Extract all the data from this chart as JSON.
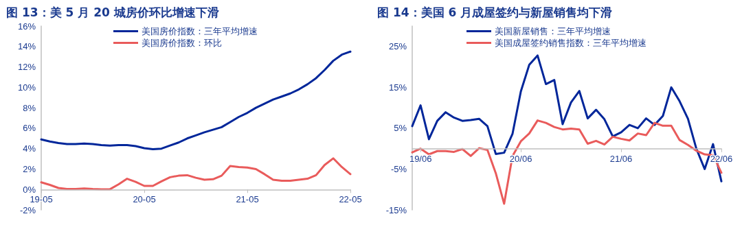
{
  "chart_data": [
    {
      "type": "line",
      "title": "图 13：美 5 月 20 城房价环比增速下滑",
      "categories": [
        "19-05",
        null,
        null,
        null,
        null,
        null,
        null,
        null,
        null,
        null,
        null,
        null,
        "20-05",
        null,
        null,
        null,
        null,
        null,
        null,
        null,
        null,
        null,
        null,
        null,
        "21-05",
        null,
        null,
        null,
        null,
        null,
        null,
        null,
        null,
        null,
        null,
        null,
        "22-05"
      ],
      "series": [
        {
          "name": "美国房价指数：三年平均增速",
          "color": "#00269a",
          "values": [
            4.9,
            4.7,
            4.55,
            4.45,
            4.45,
            4.5,
            4.45,
            4.35,
            4.3,
            4.35,
            4.35,
            4.25,
            4.05,
            3.95,
            4.0,
            4.3,
            4.6,
            5.0,
            5.3,
            5.6,
            5.85,
            6.1,
            6.6,
            7.1,
            7.5,
            8.0,
            8.4,
            8.8,
            9.1,
            9.4,
            9.8,
            10.3,
            10.9,
            11.7,
            12.6,
            13.2,
            13.5
          ]
        },
        {
          "name": "美国房价指数：环比",
          "color": "#e95b5b",
          "values": [
            0.7,
            0.45,
            0.15,
            0.05,
            0.05,
            0.1,
            0.05,
            0.02,
            0.02,
            0.5,
            1.05,
            0.75,
            0.35,
            0.35,
            0.8,
            1.2,
            1.35,
            1.4,
            1.15,
            0.95,
            1.0,
            1.35,
            2.3,
            2.2,
            2.15,
            2.0,
            1.5,
            0.95,
            0.85,
            0.85,
            0.95,
            1.05,
            1.4,
            2.4,
            3.05,
            2.2,
            1.5
          ]
        }
      ],
      "ylim": [
        -2,
        16
      ],
      "yticks": [
        {
          "value": -2,
          "label": "-2%"
        },
        {
          "value": 0,
          "label": "0%"
        },
        {
          "value": 2,
          "label": "2%"
        },
        {
          "value": 4,
          "label": "4%"
        },
        {
          "value": 6,
          "label": "6%"
        },
        {
          "value": 8,
          "label": "8%"
        },
        {
          "value": 10,
          "label": "10%"
        },
        {
          "value": 12,
          "label": "12%"
        },
        {
          "value": 14,
          "label": "14%"
        },
        {
          "value": 16,
          "label": "16%"
        }
      ],
      "legend": "top",
      "grid": false,
      "marker": "none",
      "line_style": "solid"
    },
    {
      "type": "line",
      "title": "图 14：美国 6 月成屋签约与新屋销售均下滑",
      "categories": [
        null,
        "19/06",
        null,
        null,
        null,
        null,
        null,
        null,
        null,
        null,
        null,
        null,
        null,
        "20/06",
        null,
        null,
        null,
        null,
        null,
        null,
        null,
        null,
        null,
        null,
        null,
        "21/06",
        null,
        null,
        null,
        null,
        null,
        null,
        null,
        null,
        null,
        null,
        null,
        "22/06"
      ],
      "series": [
        {
          "name": "美国新屋销售：三年平均增速",
          "color": "#00269a",
          "values": [
            5.5,
            10.6,
            2.3,
            6.8,
            8.9,
            7.6,
            6.8,
            7.0,
            7.3,
            5.5,
            -1.3,
            -1.0,
            3.6,
            14.0,
            20.5,
            22.8,
            15.8,
            16.8,
            6.0,
            11.3,
            14.1,
            7.4,
            9.5,
            7.2,
            3.0,
            4.0,
            5.8,
            5.0,
            7.4,
            5.8,
            8.0,
            15.0,
            11.6,
            7.3,
            0.0,
            -5.0,
            1.1,
            -8.0
          ]
        },
        {
          "name": "美国成屋签约销售指数：三年平均增速",
          "color": "#e95b5b",
          "values": [
            -0.9,
            0.0,
            -1.4,
            -0.6,
            -0.6,
            -0.8,
            -0.1,
            -1.8,
            0.1,
            -0.3,
            -6.0,
            -13.5,
            -1.8,
            1.8,
            3.7,
            6.9,
            6.3,
            5.3,
            4.7,
            4.9,
            4.7,
            1.2,
            1.9,
            1.0,
            2.9,
            2.4,
            2.0,
            3.7,
            3.3,
            6.3,
            5.6,
            5.6,
            2.1,
            0.9,
            -0.5,
            -1.4,
            -1.6,
            -5.9
          ]
        }
      ],
      "ylim": [
        -15,
        30
      ],
      "yticks": [
        {
          "value": -15,
          "label": "-15%"
        },
        {
          "value": -5,
          "label": "-5%"
        },
        {
          "value": 5,
          "label": "5%"
        },
        {
          "value": 15,
          "label": "15%"
        },
        {
          "value": 25,
          "label": "25%"
        }
      ],
      "legend": "top",
      "grid": false,
      "marker": "none",
      "line_style": "solid"
    }
  ]
}
